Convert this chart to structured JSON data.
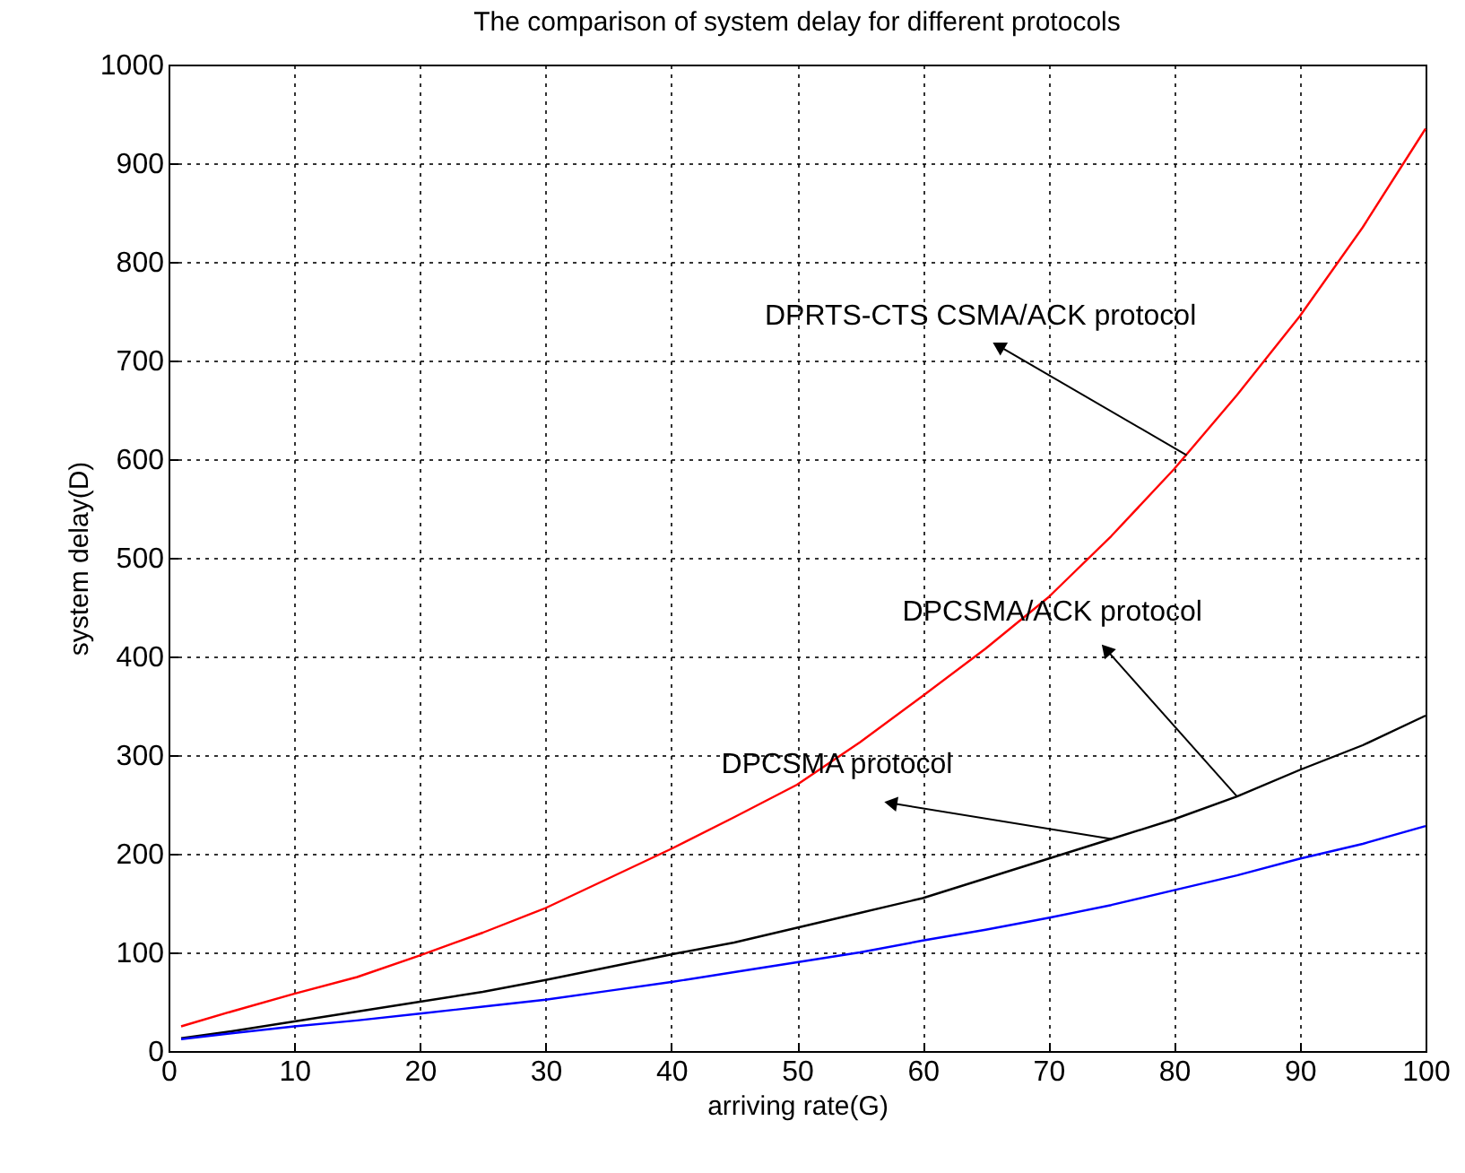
{
  "chart_data": {
    "type": "line",
    "title": "The comparison of system delay for different protocols",
    "xlabel": "arriving rate(G)",
    "ylabel": "system delay(D)",
    "x": [
      1,
      5,
      10,
      15,
      20,
      25,
      30,
      35,
      40,
      45,
      50,
      55,
      60,
      65,
      70,
      75,
      80,
      85,
      90,
      95,
      100
    ],
    "series": [
      {
        "color": "#ff0000",
        "values": [
          25,
          40,
          58,
          75,
          97,
          120,
          145,
          175,
          205,
          237,
          270,
          313,
          360,
          408,
          460,
          522,
          590,
          665,
          745,
          835,
          935
        ]
      },
      {
        "color": "#000000",
        "values": [
          13,
          20,
          30,
          40,
          50,
          60,
          72,
          85,
          98,
          110,
          125,
          140,
          155,
          175,
          195,
          215,
          235,
          258,
          285,
          310,
          340
        ]
      },
      {
        "color": "#0000ff",
        "values": [
          12,
          18,
          25,
          31,
          38,
          45,
          52,
          61,
          70,
          80,
          90,
          100,
          112,
          123,
          135,
          148,
          163,
          178,
          195,
          210,
          228
        ]
      }
    ],
    "annotations": [
      {
        "text": "DPRTS-CTS CSMA/ACK protocol",
        "x": 81,
        "y": 604
      },
      {
        "text": "DPCSMA/ACK protocol",
        "x": 85,
        "y": 258
      },
      {
        "text": "DPCSMA protocol",
        "x": 75,
        "y": 215
      }
    ],
    "xlim": [
      0,
      100
    ],
    "xticks": [
      0,
      10,
      20,
      30,
      40,
      50,
      60,
      70,
      80,
      90,
      100
    ],
    "ylim": [
      0,
      1000
    ],
    "yticks": [
      0,
      100,
      200,
      300,
      400,
      500,
      600,
      700,
      800,
      900,
      1000
    ],
    "grid": true,
    "legend": false,
    "marker": "none",
    "line_style": "solid"
  }
}
